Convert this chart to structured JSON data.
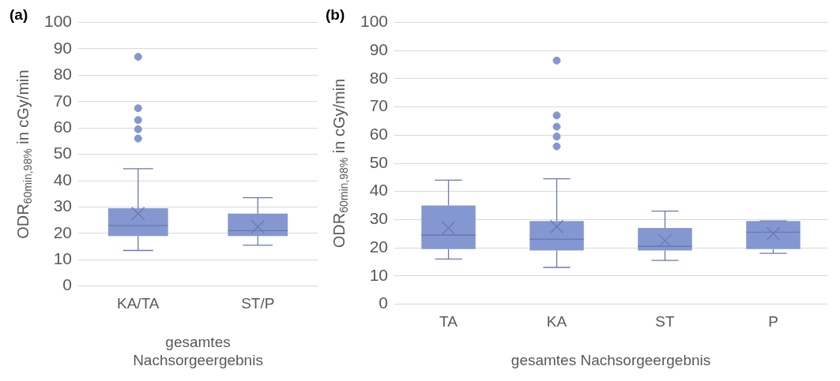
{
  "chart_data": [
    {
      "type": "box",
      "title": "(a)",
      "xlabel": "gesamtes Nachsorgeergebnis",
      "ylabel": "ODR$_{60min,98%}$ in cGy/min",
      "categories": [
        "KA/TA",
        "ST/P"
      ],
      "color": "#8497d0",
      "boxes": [
        {
          "low": 13.5,
          "q1": 19,
          "median": 23,
          "q3": 29.5,
          "high": 44.5,
          "mean": 27.5,
          "outliers": [
            56,
            59.5,
            63,
            67.5,
            87
          ]
        },
        {
          "low": 15.5,
          "q1": 19,
          "median": 21,
          "q3": 27.5,
          "high": 33.5,
          "mean": 22.5
        }
      ],
      "ylim": [
        0,
        100
      ],
      "yticks": [
        0,
        10,
        20,
        30,
        40,
        50,
        60,
        70,
        80,
        90,
        100
      ],
      "grid": "y",
      "legend": false
    },
    {
      "type": "box",
      "title": "(b)",
      "xlabel": "gesamtes Nachsorgeergebnis",
      "ylabel": "ODR$_{60min,98%}$ in cGy/min",
      "categories": [
        "TA",
        "KA",
        "ST",
        "P"
      ],
      "color": "#8497d0",
      "boxes": [
        {
          "low": 16,
          "q1": 19.5,
          "median": 24.5,
          "q3": 35,
          "high": 44,
          "mean": 27
        },
        {
          "low": 13,
          "q1": 19,
          "median": 23,
          "q3": 29.5,
          "high": 44.5,
          "mean": 27.5,
          "outliers": [
            56,
            59.5,
            63,
            67,
            86.5
          ]
        },
        {
          "low": 15.5,
          "q1": 19,
          "median": 20.5,
          "q3": 27,
          "high": 33,
          "mean": 22.5
        },
        {
          "low": 18,
          "q1": 19.5,
          "median": 25.5,
          "q3": 29.5,
          "high": 29.5,
          "mean": 25
        }
      ],
      "ylim": [
        0,
        100
      ],
      "yticks": [
        0,
        10,
        20,
        30,
        40,
        50,
        60,
        70,
        80,
        90,
        100
      ],
      "grid": "y",
      "legend": false
    }
  ]
}
